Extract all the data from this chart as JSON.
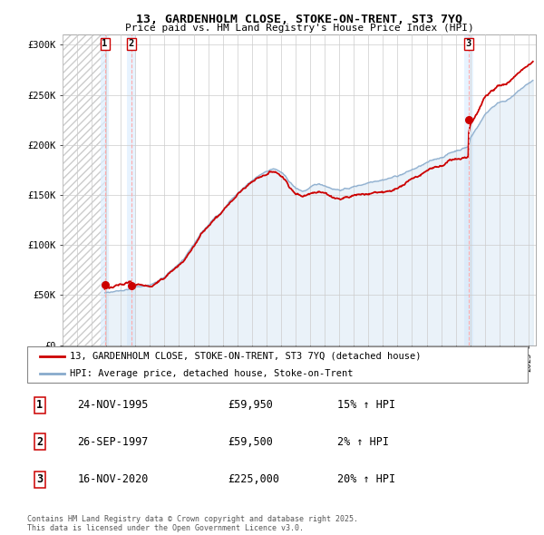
{
  "title_line1": "13, GARDENHOLM CLOSE, STOKE-ON-TRENT, ST3 7YQ",
  "title_line2": "Price paid vs. HM Land Registry's House Price Index (HPI)",
  "ylabel_ticks": [
    "£0",
    "£50K",
    "£100K",
    "£150K",
    "£200K",
    "£250K",
    "£300K"
  ],
  "ytick_values": [
    0,
    50000,
    100000,
    150000,
    200000,
    250000,
    300000
  ],
  "ylim": [
    0,
    310000
  ],
  "xlim_start": 1993.0,
  "xlim_end": 2025.5,
  "sales": [
    {
      "label": "1",
      "date_num": 1995.9,
      "price": 59950
    },
    {
      "label": "2",
      "date_num": 1997.73,
      "price": 59500
    },
    {
      "label": "3",
      "date_num": 2020.88,
      "price": 225000
    }
  ],
  "sale_table": [
    {
      "num": "1",
      "date": "24-NOV-1995",
      "price": "£59,950",
      "hpi": "15% ↑ HPI"
    },
    {
      "num": "2",
      "date": "26-SEP-1997",
      "price": "£59,500",
      "hpi": "2% ↑ HPI"
    },
    {
      "num": "3",
      "date": "16-NOV-2020",
      "price": "£225,000",
      "hpi": "20% ↑ HPI"
    }
  ],
  "legend_line1": "13, GARDENHOLM CLOSE, STOKE-ON-TRENT, ST3 7YQ (detached house)",
  "legend_line2": "HPI: Average price, detached house, Stoke-on-Trent",
  "footer": "Contains HM Land Registry data © Crown copyright and database right 2025.\nThis data is licensed under the Open Government Licence v3.0.",
  "grid_color": "#cccccc",
  "red_line_color": "#cc0000",
  "blue_line_color": "#88aacc",
  "blue_fill_color": "#cce0f0",
  "dot_color": "#cc0000",
  "sale_vline_color": "#ffaaaa",
  "sale_shade_color": "#ddeeff"
}
